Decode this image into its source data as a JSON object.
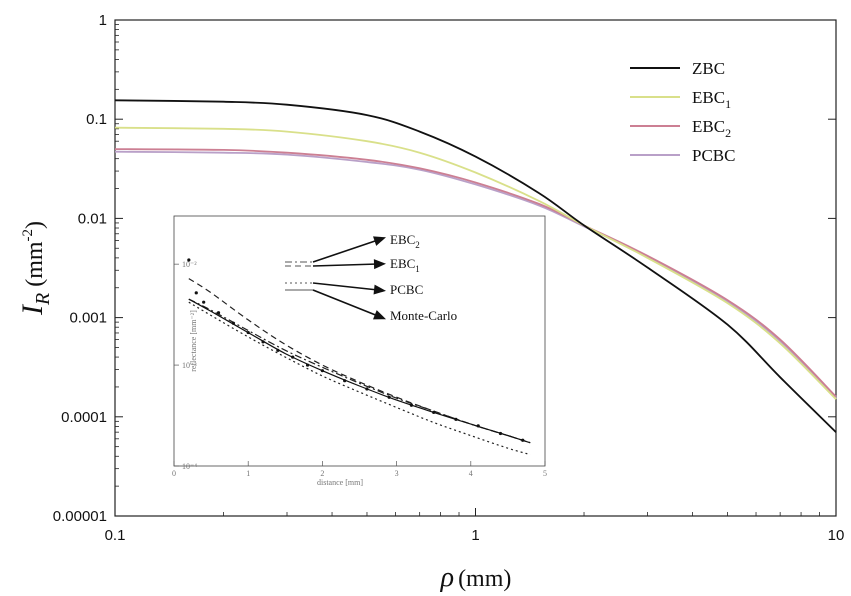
{
  "chart_data": [
    {
      "type": "line",
      "title": "",
      "xlabel": "(mm)",
      "xlabel_symbol": "ρ",
      "ylabel_symbol": "I",
      "ylabel_sub": "R",
      "ylabel_unit_pre": " (mm",
      "ylabel_unit_sup": "-2",
      "ylabel_unit_post": ")",
      "xscale": "log",
      "yscale": "log",
      "xlim": [
        0.1,
        10
      ],
      "ylim": [
        1e-05,
        1
      ],
      "x_ticks": [
        {
          "value": 0.1,
          "label": "0.1"
        },
        {
          "value": 1,
          "label": "1"
        },
        {
          "value": 10,
          "label": "10"
        }
      ],
      "y_ticks": [
        {
          "value": 1,
          "label": "1"
        },
        {
          "value": 0.1,
          "label": "0.1"
        },
        {
          "value": 0.01,
          "label": "0.01"
        },
        {
          "value": 0.001,
          "label": "0.001"
        },
        {
          "value": 0.0001,
          "label": "0.0001"
        },
        {
          "value": 1e-05,
          "label": "0.00001"
        }
      ],
      "grid": false,
      "legend_position": "top-right",
      "series": [
        {
          "name": "ZBC",
          "color": "#111111",
          "x": [
            0.1,
            0.2,
            0.3,
            0.5,
            0.7,
            1,
            1.5,
            2,
            3,
            5,
            7,
            10
          ],
          "y": [
            0.155,
            0.15,
            0.14,
            0.11,
            0.075,
            0.042,
            0.018,
            0.0085,
            0.0032,
            0.00085,
            0.00025,
            7e-05
          ]
        },
        {
          "name": "EBC",
          "sub": "1",
          "color": "#d9e08a",
          "x": [
            0.1,
            0.2,
            0.3,
            0.5,
            0.7,
            1,
            1.5,
            2,
            3,
            5,
            7,
            10
          ],
          "y": [
            0.082,
            0.08,
            0.075,
            0.06,
            0.046,
            0.029,
            0.015,
            0.0085,
            0.004,
            0.0014,
            0.00055,
            0.00015
          ]
        },
        {
          "name": "EBC",
          "sub": "2",
          "color": "#cc7f93",
          "x": [
            0.1,
            0.2,
            0.3,
            0.5,
            0.7,
            1,
            1.5,
            2,
            3,
            5,
            7,
            10
          ],
          "y": [
            0.05,
            0.049,
            0.046,
            0.039,
            0.032,
            0.023,
            0.014,
            0.0085,
            0.0042,
            0.0015,
            0.0006,
            0.00016
          ]
        },
        {
          "name": "PCBC",
          "color": "#b9a0c8",
          "x": [
            0.1,
            0.2,
            0.3,
            0.5,
            0.7,
            1,
            1.5,
            2,
            3,
            5,
            7,
            10
          ],
          "y": [
            0.047,
            0.046,
            0.044,
            0.037,
            0.031,
            0.022,
            0.0135,
            0.0083,
            0.0041,
            0.00145,
            0.00058,
            0.000155
          ]
        }
      ]
    },
    {
      "type": "line",
      "role": "inset",
      "xlabel": "distance [mm]",
      "ylabel": "reflectance [mm⁻²]",
      "xlim": [
        0,
        5
      ],
      "yscale": "log",
      "ylim": [
        0.0001,
        0.03
      ],
      "x_ticks": [
        {
          "value": 0,
          "label": "0"
        },
        {
          "value": 1,
          "label": "1"
        },
        {
          "value": 2,
          "label": "2"
        },
        {
          "value": 3,
          "label": "3"
        },
        {
          "value": 4,
          "label": "4"
        },
        {
          "value": 5,
          "label": "5"
        }
      ],
      "y_ticks": [
        {
          "value": 0.01,
          "label": "10⁻²"
        },
        {
          "value": 0.001,
          "label": "10⁻³"
        },
        {
          "value": 0.0001,
          "label": "10⁻⁴"
        }
      ],
      "series": [
        {
          "name": "EBC",
          "sub": "2",
          "style": "dashdot",
          "color": "#222222",
          "x": [
            0.2,
            0.5,
            1,
            1.5,
            2,
            2.5,
            3,
            3.5,
            4,
            4.5,
            4.8
          ],
          "y": [
            0.0045,
            0.0035,
            0.0022,
            0.0014,
            0.00095,
            0.00066,
            0.00047,
            0.00035,
            0.00026,
            0.0002,
            0.00017
          ]
        },
        {
          "name": "EBC",
          "sub": "1",
          "style": "dashed",
          "color": "#222222",
          "x": [
            0.2,
            0.5,
            1,
            1.5,
            2,
            2.5,
            3,
            3.5,
            4,
            4.5,
            4.8
          ],
          "y": [
            0.0072,
            0.0052,
            0.0028,
            0.0016,
            0.001,
            0.00068,
            0.00048,
            0.00035,
            0.00026,
            0.0002,
            0.00017
          ]
        },
        {
          "name": "PCBC",
          "style": "dotted",
          "color": "#222222",
          "x": [
            0.2,
            0.5,
            1,
            1.5,
            2,
            2.5,
            3,
            3.5,
            4,
            4.5,
            4.8
          ],
          "y": [
            0.0042,
            0.0031,
            0.0019,
            0.0012,
            0.00078,
            0.00054,
            0.00038,
            0.00027,
            0.0002,
            0.00015,
            0.00013
          ]
        },
        {
          "name": "Monte-Carlo",
          "style": "solid",
          "color": "#111111",
          "x": [
            0.2,
            0.5,
            1,
            1.5,
            2,
            2.5,
            3,
            3.5,
            4,
            4.5,
            4.8
          ],
          "y": [
            0.0045,
            0.0034,
            0.0021,
            0.0013,
            0.00088,
            0.00062,
            0.00045,
            0.00034,
            0.00026,
            0.0002,
            0.00017
          ]
        }
      ],
      "points": {
        "x": [
          0.2,
          0.3,
          0.4,
          0.6,
          0.8,
          1.0,
          1.2,
          1.4,
          1.6,
          1.8,
          2.0,
          2.3,
          2.6,
          2.9,
          3.2,
          3.5,
          3.8,
          4.1,
          4.4,
          4.7
        ],
        "y": [
          0.011,
          0.0052,
          0.0042,
          0.0033,
          0.0026,
          0.0021,
          0.0017,
          0.0014,
          0.0012,
          0.001,
          0.00088,
          0.0007,
          0.00058,
          0.00048,
          0.0004,
          0.00034,
          0.00029,
          0.00025,
          0.00021,
          0.00018
        ]
      }
    }
  ]
}
